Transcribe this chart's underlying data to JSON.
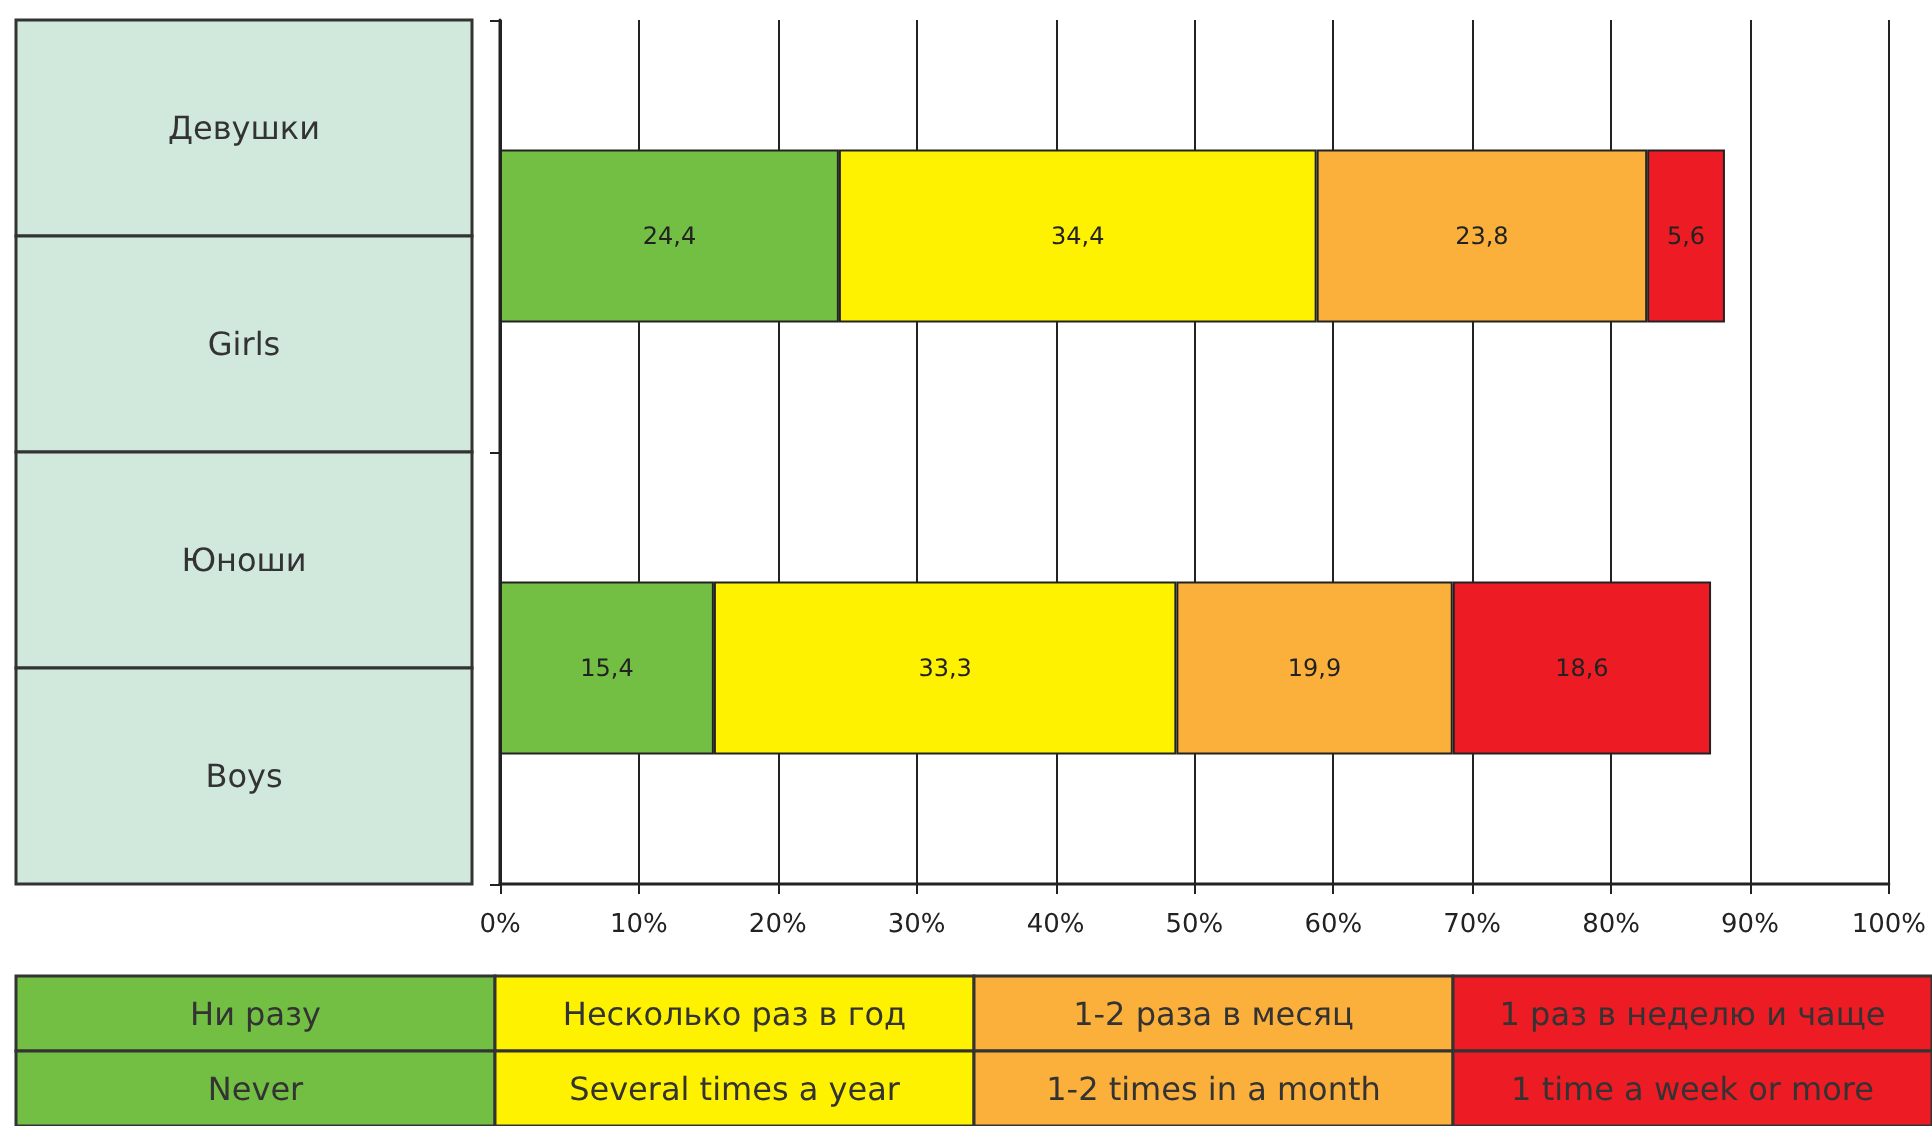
{
  "chart_data": {
    "type": "bar",
    "orientation": "horizontal",
    "stacked": true,
    "categories": [
      "Девушки\nGirls",
      "Юноши\nBoys"
    ],
    "series": [
      {
        "name": "Ни разу\nNever",
        "color": "#72bf44",
        "values": [
          24.4,
          15.4
        ],
        "value_labels": [
          "24,4",
          "15,4"
        ]
      },
      {
        "name": "Несколько раз в год\nSeveral times a year",
        "color": "#fff200",
        "values": [
          34.4,
          33.3
        ],
        "value_labels": [
          "34,4",
          "33,3"
        ]
      },
      {
        "name": "1-2 раза в месяц\n1-2 times in a month",
        "color": "#fbb03b",
        "values": [
          23.8,
          19.9
        ],
        "value_labels": [
          "23,8",
          "19,9"
        ]
      },
      {
        "name": "1 раз в неделю и чаще\n1 time a week or more",
        "color": "#ed1c24",
        "values": [
          5.6,
          18.6
        ],
        "value_labels": [
          "5,6",
          "18,6"
        ]
      }
    ],
    "xlim": [
      0,
      100
    ],
    "xticks": [
      {
        "value": 0,
        "label": "0%"
      },
      {
        "value": 10,
        "label": "10%"
      },
      {
        "value": 20,
        "label": "20%"
      },
      {
        "value": 30,
        "label": "30%"
      },
      {
        "value": 40,
        "label": "40%"
      },
      {
        "value": 50,
        "label": "50%"
      },
      {
        "value": 60,
        "label": "60%"
      },
      {
        "value": 70,
        "label": "70%"
      },
      {
        "value": 80,
        "label": "80%"
      },
      {
        "value": 90,
        "label": "90%"
      },
      {
        "value": 100,
        "label": "100%"
      }
    ],
    "grid": "x",
    "legend": "bottom"
  }
}
